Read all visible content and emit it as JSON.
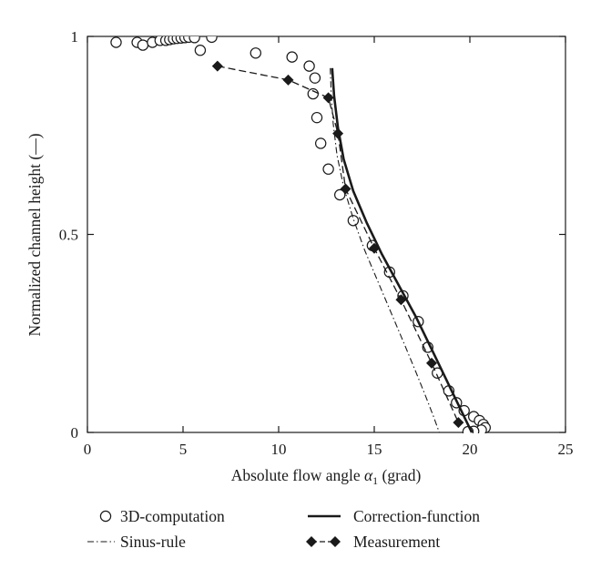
{
  "chart_data": {
    "type": "line",
    "xlabel_prefix": "Absolute flow angle ",
    "xlabel_symbol": "α",
    "xlabel_sub": "1",
    "xlabel_suffix": " (grad)",
    "ylabel": "Normalized channel height (—)",
    "xlim": [
      0,
      25
    ],
    "ylim": [
      0,
      1
    ],
    "xticks": [
      "0",
      "5",
      "10",
      "15",
      "20",
      "25"
    ],
    "yticks": [
      "0",
      "0.5",
      "1"
    ],
    "grid": false,
    "legend_position": "bottom",
    "series": [
      {
        "name": "3D-computation",
        "style": "open-circle",
        "color": "#1a1a1a",
        "x": [
          1.5,
          2.6,
          2.9,
          3.4,
          3.8,
          4.1,
          4.3,
          4.5,
          4.7,
          4.9,
          5.1,
          5.3,
          5.6,
          6.5,
          5.9,
          8.8,
          10.7,
          11.6,
          11.9,
          11.8,
          12.0,
          12.2,
          12.6,
          13.2,
          13.9,
          14.9,
          15.8,
          16.5,
          17.3,
          17.8,
          18.3,
          18.9,
          19.3,
          19.7,
          20.2,
          20.5,
          20.7,
          20.8,
          20.6,
          20.2,
          19.9
        ],
        "y": [
          0.985,
          0.985,
          0.978,
          0.985,
          0.99,
          0.99,
          0.992,
          0.994,
          0.995,
          0.996,
          0.997,
          0.998,
          0.997,
          0.998,
          0.965,
          0.958,
          0.948,
          0.925,
          0.895,
          0.855,
          0.795,
          0.73,
          0.665,
          0.6,
          0.535,
          0.472,
          0.405,
          0.345,
          0.28,
          0.215,
          0.15,
          0.105,
          0.075,
          0.055,
          0.04,
          0.03,
          0.02,
          0.012,
          0.006,
          0.003,
          0.002
        ]
      },
      {
        "name": "Correction-function",
        "style": "solid",
        "color": "#1a1a1a",
        "x": [
          12.8,
          12.9,
          13.1,
          13.4,
          13.9,
          14.6,
          15.4,
          16.3,
          17.2,
          18.0,
          18.7,
          19.2,
          19.6,
          19.9,
          20.1
        ],
        "y": [
          0.92,
          0.85,
          0.77,
          0.69,
          0.61,
          0.53,
          0.45,
          0.37,
          0.29,
          0.21,
          0.14,
          0.09,
          0.05,
          0.02,
          0.0
        ]
      },
      {
        "name": "Sinus-rule",
        "style": "dash-dot",
        "color": "#1a1a1a",
        "x": [
          12.7,
          12.75,
          12.85,
          13.05,
          13.4,
          13.9,
          14.5,
          15.2,
          15.9,
          16.6,
          17.2,
          17.7,
          18.1,
          18.4
        ],
        "y": [
          0.92,
          0.85,
          0.78,
          0.7,
          0.62,
          0.54,
          0.46,
          0.38,
          0.3,
          0.22,
          0.15,
          0.09,
          0.04,
          0.0
        ]
      },
      {
        "name": "Measurement",
        "style": "filled-diamond-dashed",
        "color": "#1a1a1a",
        "x": [
          6.8,
          10.5,
          12.6,
          13.1,
          13.5,
          15.0,
          16.4,
          18.0,
          19.4
        ],
        "y": [
          0.925,
          0.89,
          0.845,
          0.755,
          0.615,
          0.465,
          0.335,
          0.175,
          0.025
        ]
      }
    ]
  }
}
